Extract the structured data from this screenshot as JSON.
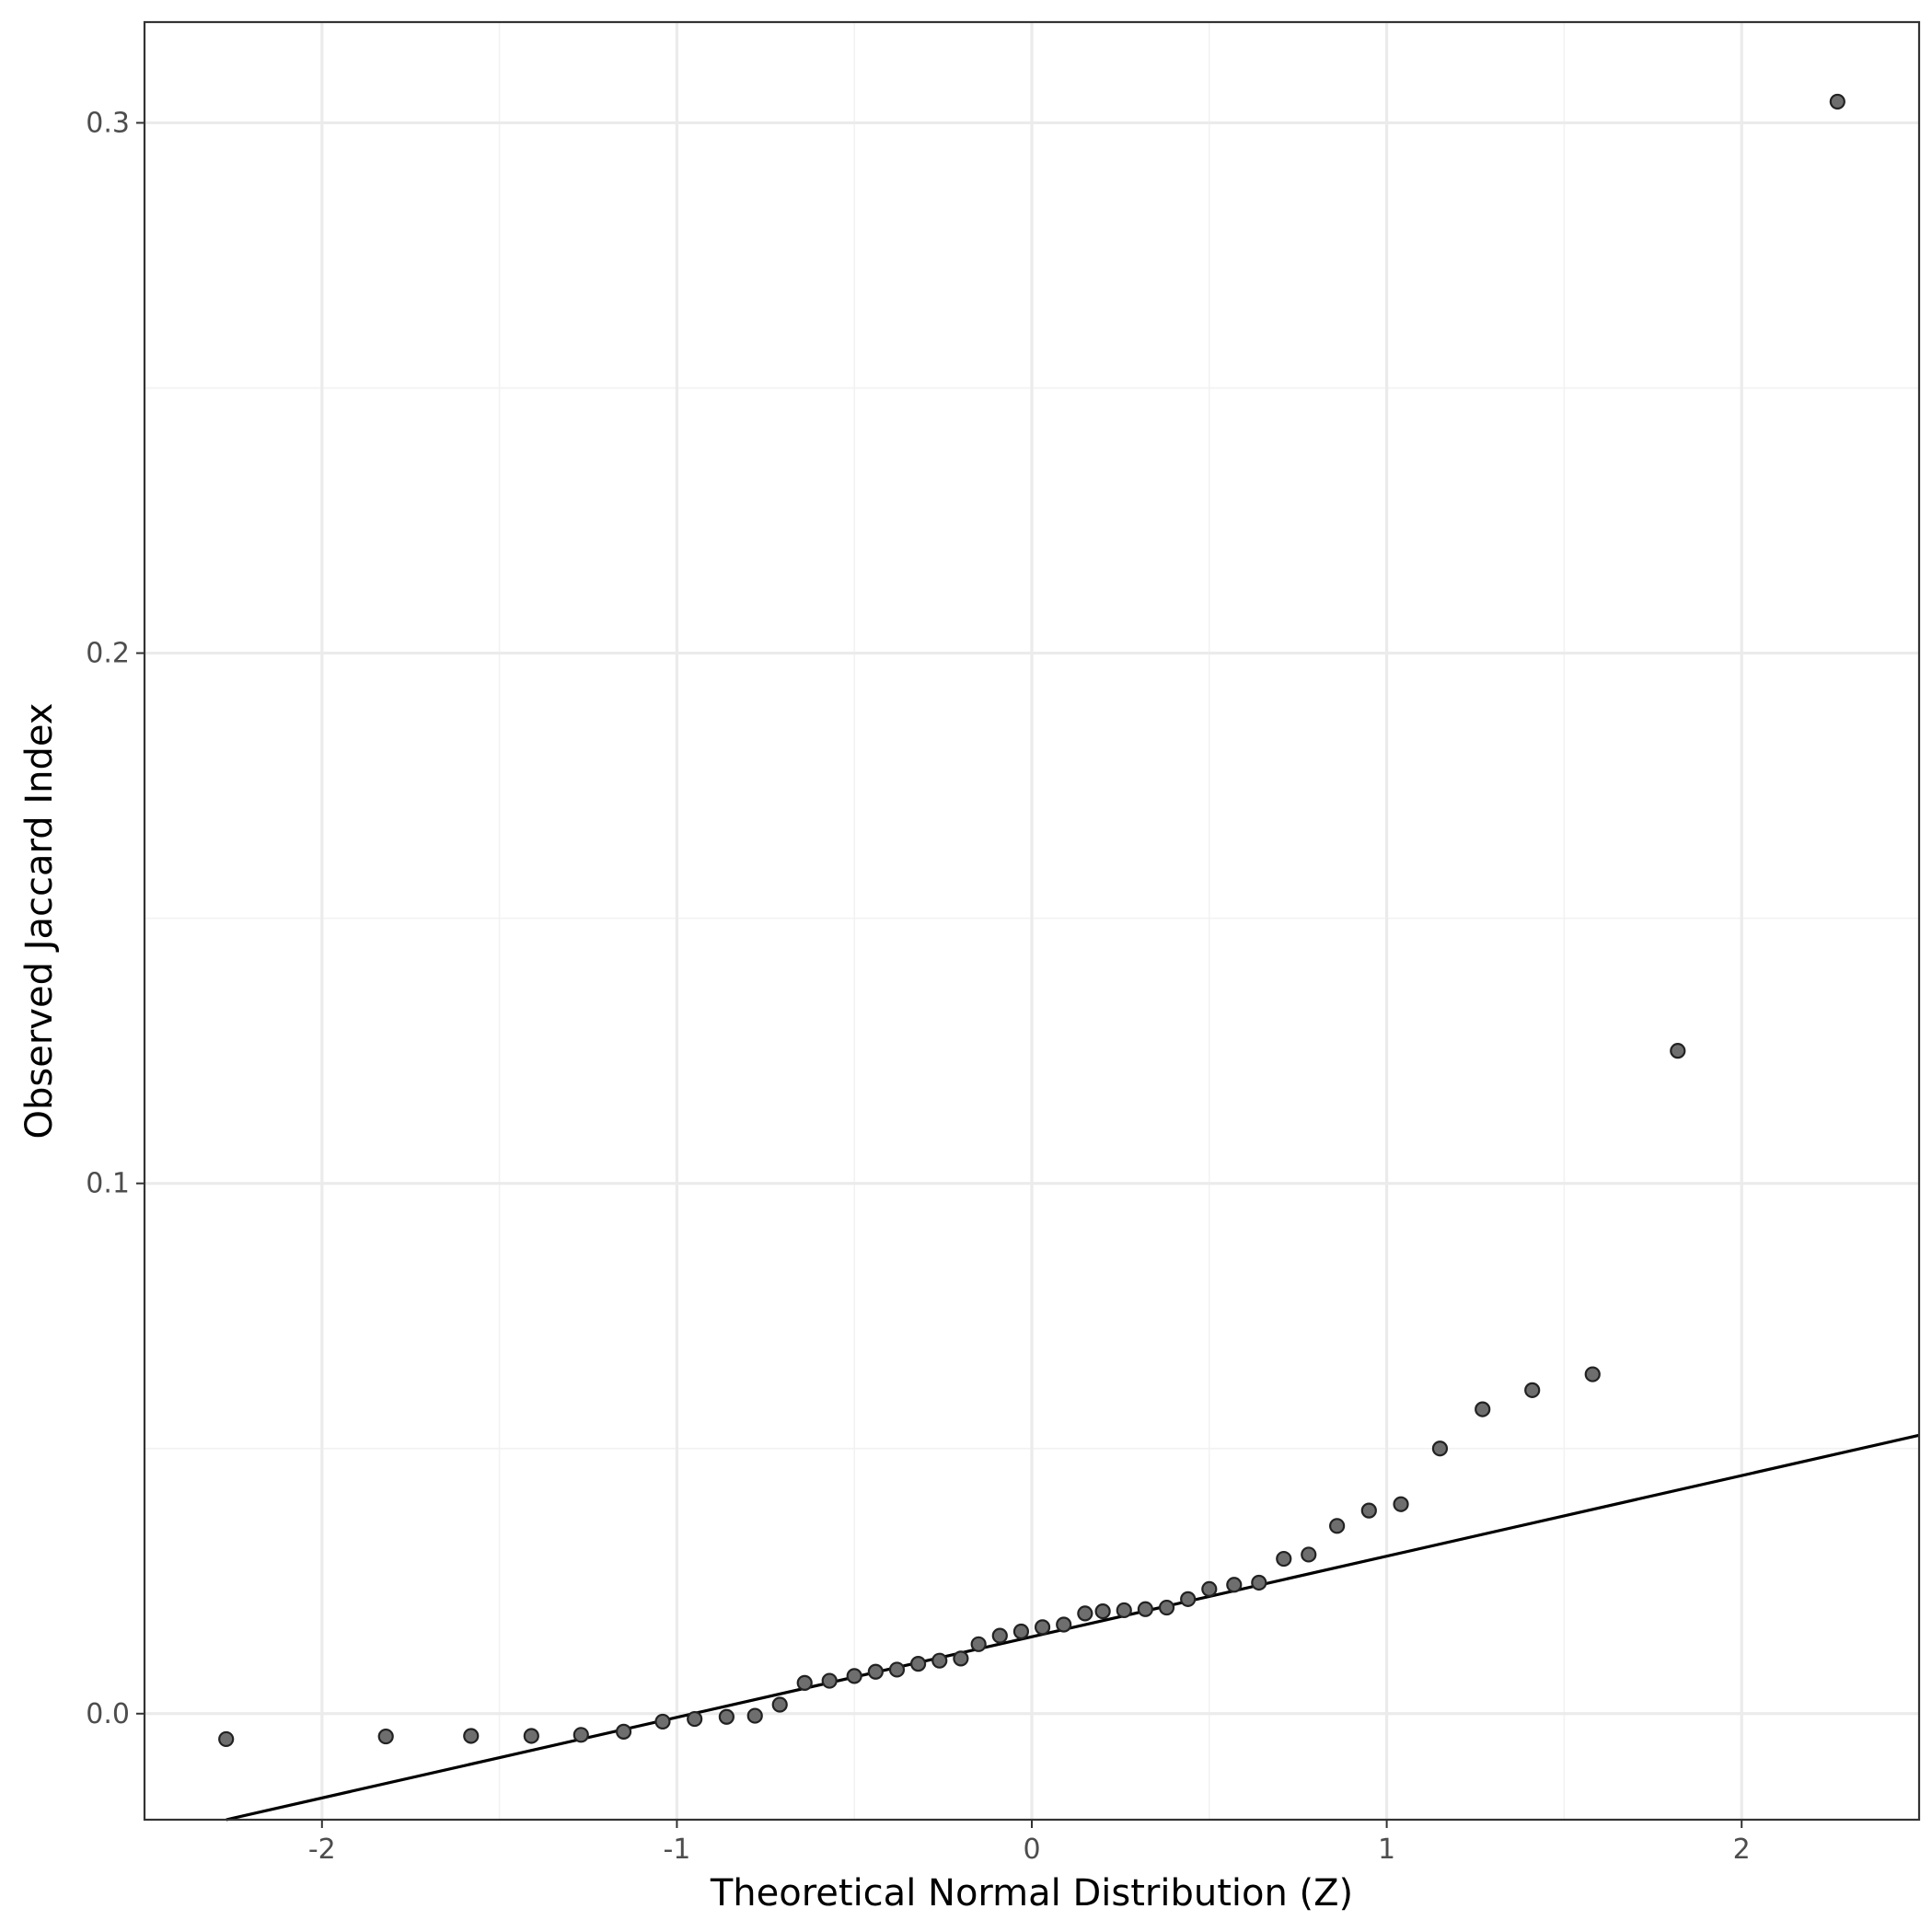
{
  "chart_data": {
    "type": "scatter",
    "title": "",
    "xlabel": "Theoretical Normal Distribution (Z)",
    "ylabel": "Observed Jaccard Index",
    "xlim": [
      -2.5,
      2.5
    ],
    "ylim": [
      -0.02,
      0.319
    ],
    "x_ticks": [
      -2,
      -1,
      0,
      1,
      2
    ],
    "x_tick_labels": [
      "-2",
      "-1",
      "0",
      "1",
      "2"
    ],
    "y_ticks": [
      0.0,
      0.1,
      0.2,
      0.3
    ],
    "y_tick_labels": [
      "0.0",
      "0.1",
      "0.2",
      "0.3"
    ],
    "grid": true,
    "legend": "none",
    "point_color": "#6e6e6e",
    "line_color": "#000000",
    "reference_line": {
      "intercept": 0.0145,
      "slope": 0.0152
    },
    "points": [
      {
        "x": -2.27,
        "y": -0.0048
      },
      {
        "x": -1.82,
        "y": -0.0043
      },
      {
        "x": -1.58,
        "y": -0.0042
      },
      {
        "x": -1.41,
        "y": -0.0042
      },
      {
        "x": -1.27,
        "y": -0.004
      },
      {
        "x": -1.15,
        "y": -0.0034
      },
      {
        "x": -1.04,
        "y": -0.0015
      },
      {
        "x": -0.95,
        "y": -0.001
      },
      {
        "x": -0.86,
        "y": -0.0006
      },
      {
        "x": -0.78,
        "y": -0.0004
      },
      {
        "x": -0.71,
        "y": 0.0017
      },
      {
        "x": -0.64,
        "y": 0.0058
      },
      {
        "x": -0.57,
        "y": 0.0062
      },
      {
        "x": -0.5,
        "y": 0.0071
      },
      {
        "x": -0.44,
        "y": 0.0079
      },
      {
        "x": -0.38,
        "y": 0.0083
      },
      {
        "x": -0.32,
        "y": 0.0094
      },
      {
        "x": -0.26,
        "y": 0.01
      },
      {
        "x": -0.2,
        "y": 0.0104
      },
      {
        "x": -0.15,
        "y": 0.0131
      },
      {
        "x": -0.09,
        "y": 0.0147
      },
      {
        "x": -0.03,
        "y": 0.0155
      },
      {
        "x": 0.03,
        "y": 0.0163
      },
      {
        "x": 0.09,
        "y": 0.0168
      },
      {
        "x": 0.15,
        "y": 0.0189
      },
      {
        "x": 0.2,
        "y": 0.0193
      },
      {
        "x": 0.26,
        "y": 0.0195
      },
      {
        "x": 0.32,
        "y": 0.0197
      },
      {
        "x": 0.38,
        "y": 0.02
      },
      {
        "x": 0.44,
        "y": 0.0216
      },
      {
        "x": 0.5,
        "y": 0.0235
      },
      {
        "x": 0.57,
        "y": 0.0243
      },
      {
        "x": 0.64,
        "y": 0.0247
      },
      {
        "x": 0.71,
        "y": 0.0292
      },
      {
        "x": 0.78,
        "y": 0.03
      },
      {
        "x": 0.86,
        "y": 0.0354
      },
      {
        "x": 0.95,
        "y": 0.0383
      },
      {
        "x": 1.04,
        "y": 0.0395
      },
      {
        "x": 1.15,
        "y": 0.05
      },
      {
        "x": 1.27,
        "y": 0.0574
      },
      {
        "x": 1.41,
        "y": 0.061
      },
      {
        "x": 1.58,
        "y": 0.064
      },
      {
        "x": 1.82,
        "y": 0.125
      },
      {
        "x": 2.27,
        "y": 0.304
      }
    ]
  }
}
